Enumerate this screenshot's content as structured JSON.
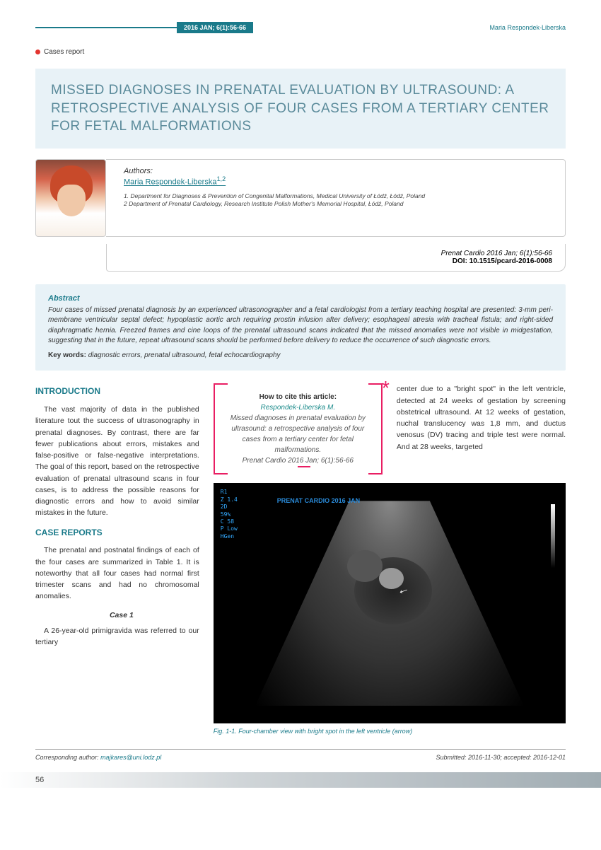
{
  "header": {
    "issue_badge": "2016 JAN; 6(1):56-66",
    "author_name": "Maria Respondek-Liberska"
  },
  "report_tag": "Cases report",
  "title": "MISSED DIAGNOSES  IN PRENATAL EVALUATION BY ULTRASOUND: A RETROSPECTIVE ANALYSIS OF FOUR CASES FROM A TERTIARY CENTER FOR FETAL MALFORMATIONS",
  "authors": {
    "label": "Authors:",
    "name": "Maria Respondek-Liberska",
    "superscript": "1,2",
    "affiliations": [
      "1. Department for Diagnoses & Prevention of Congenital Malformations, Medical University of Łódź, Łódź, Poland",
      "2 Department of Prenatal Cardiology, Research Institute Polish Mother's Memorial Hospital, Łódź, Poland"
    ]
  },
  "doi_box": {
    "citation": "Prenat Cardio 2016 Jan; 6(1):56-66",
    "doi_label": "DOI: 10.1515/pcard-2016-0008"
  },
  "abstract": {
    "heading": "Abstract",
    "body": "Four cases of missed prenatal diagnosis by an experienced ultrasonographer and a fetal cardiologist from a tertiary teaching hospital are presented: 3-mm peri-membrane ventricular septal defect; hypoplastic aortic arch requiring prostin infusion after delivery; esophageal atresia with tracheal fistula; and right-sided diaphragmatic hernia. Freezed frames and cine loops of the prenatal ultrasound scans indicated that the missed anomalies were not visible in midgestation, suggesting that in the future, repeat ultrasound scans should be performed before delivery to reduce the occurrence of such diagnostic errors.",
    "keywords_label": "Key words:",
    "keywords": "diagnostic errors, prenatal ultrasound, fetal echocardiography"
  },
  "body": {
    "intro_heading": "INTRODUCTION",
    "intro_text": "The vast majority of data in the published literature tout the success of ultrasonography in prenatal diagnoses. By contrast, there are far fewer publications about errors, mistakes and false-positive or false-negative interpretations. The goal of this report, based on the retrospective evaluation of prenatal ultrasound scans in four cases, is to address the possible reasons for diagnostic errors and how to avoid similar mistakes in the future.",
    "cases_heading": "CASE REPORTS",
    "cases_intro": "The prenatal and postnatal findings of each of the four cases are summarized in Table 1. It is noteworthy that all four cases had normal first trimester scans and had no chromosomal anomalies.",
    "case1_label": "Case 1",
    "case1_text": "A 26-year-old primigravida was referred to our tertiary",
    "col3_text": "center due to a \"bright spot\" in the left ventricle, detected at 24 weeks of gestation by screening obstetrical ultrasound. At 12 weeks of gestation, nuchal translucency was 1,8 mm, and ductus venosus (DV) tracing and triple test were normal. And at 28 weeks, targeted"
  },
  "cite_box": {
    "heading": "How to cite this article:",
    "author": "Respondek-Liberska M.",
    "title_line": "Missed diagnoses  in prenatal evaluation by ultrasound: a retrospective analysis of four cases from a tertiary center for fetal malformations.",
    "citation": "Prenat Cardio 2016 Jan; 6(1):56-66"
  },
  "ultrasound": {
    "params": "R1\nZ 1.4\n2D\n59%\nC 58\nP Low\nHGen",
    "watermark": "PRENAT CARDIO 2016 JAN",
    "caption": "Fig. 1-1. Four-chamber view with bright spot in the left ventricle (arrow)"
  },
  "footer": {
    "corresponding": "Corresponding author: majkares@uni.lodz.pl",
    "dates": "Submitted: 2016-11-30; accepted: 2016-12-01",
    "page_number": "56"
  }
}
